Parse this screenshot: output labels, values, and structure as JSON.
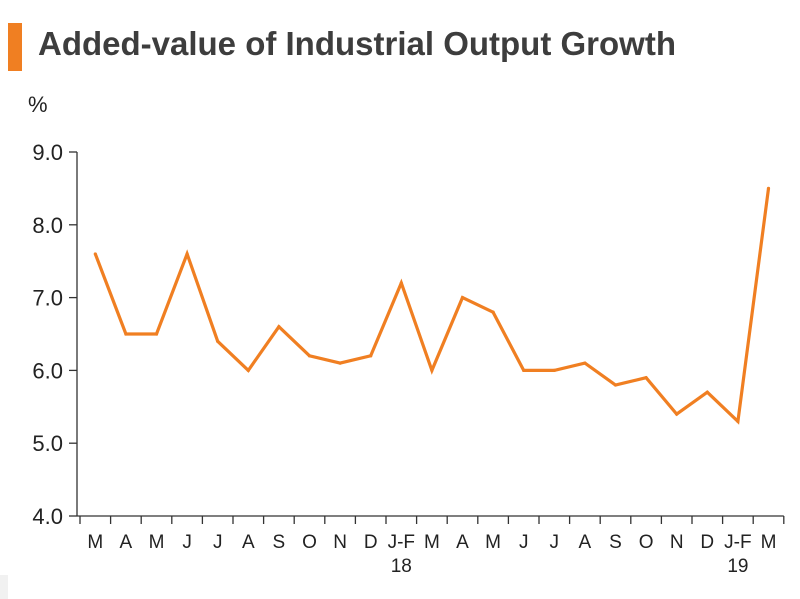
{
  "chart_data": {
    "type": "line",
    "title": "Added-value of Industrial Output Growth",
    "ylabel": "%",
    "xlabel": "",
    "ylim": [
      4.0,
      9.0
    ],
    "yticks": [
      "4.0",
      "5.0",
      "6.0",
      "7.0",
      "8.0",
      "9.0"
    ],
    "categories": [
      "M",
      "A",
      "M",
      "J",
      "J",
      "A",
      "S",
      "O",
      "N",
      "D",
      "J-F",
      "M",
      "A",
      "M",
      "J",
      "J",
      "A",
      "S",
      "O",
      "N",
      "D",
      "J-F",
      "M"
    ],
    "year_labels": [
      {
        "category_index": 10,
        "label": "18"
      },
      {
        "category_index": 21,
        "label": "19"
      }
    ],
    "series": [
      {
        "name": "Added-value of Industrial Output Growth",
        "color": "#f07f22",
        "values": [
          7.6,
          6.5,
          6.5,
          7.6,
          6.4,
          6.0,
          6.6,
          6.2,
          6.1,
          6.2,
          7.2,
          6.0,
          7.0,
          6.8,
          6.0,
          6.0,
          6.1,
          5.8,
          5.9,
          5.4,
          5.7,
          5.3,
          8.5
        ]
      }
    ],
    "grid": false,
    "legend": "none"
  },
  "colors": {
    "accent": "#f07f22",
    "axis": "#333333",
    "text": "#3d3d3d"
  }
}
